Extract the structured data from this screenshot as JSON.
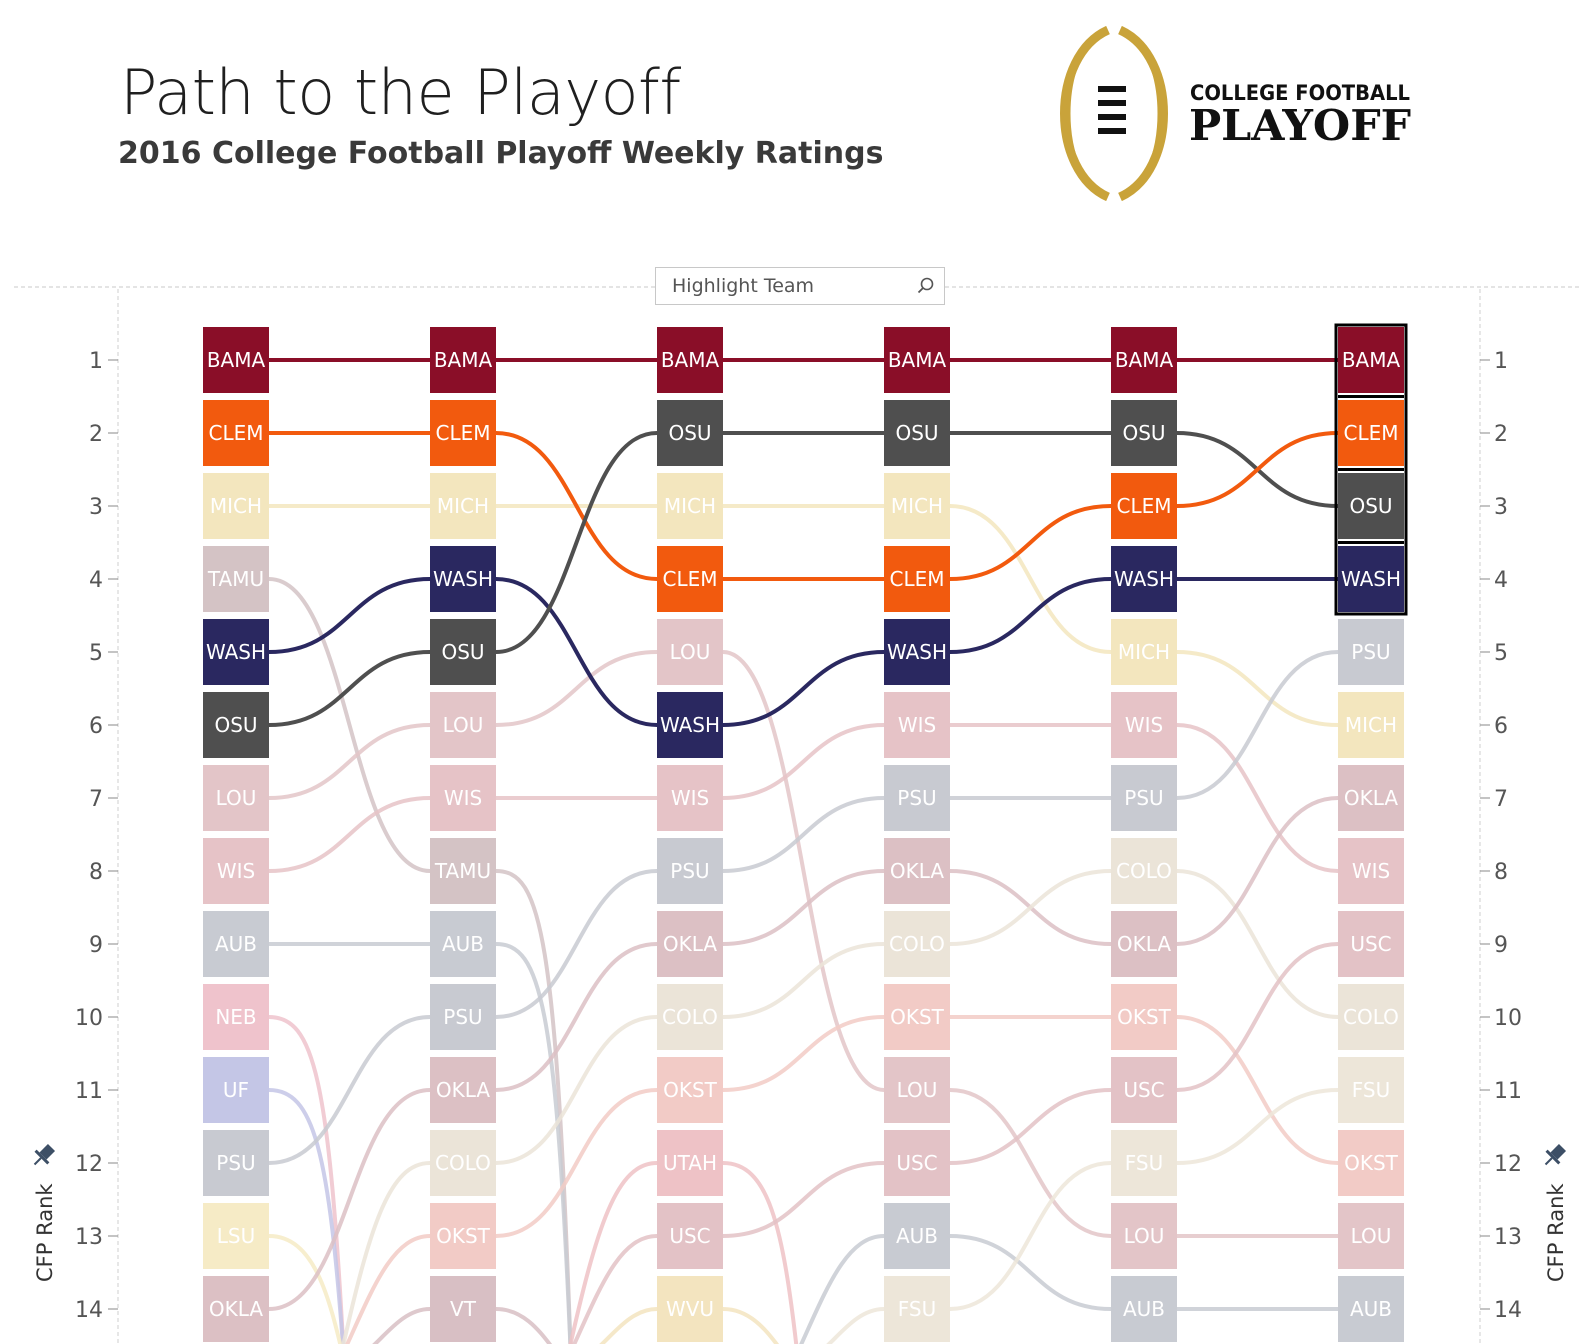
{
  "header": {
    "title": "Path to the Playoff",
    "subtitle": "2016 College Football Playoff Weekly Ratings"
  },
  "logo": {
    "line1": "COLLEGE FOOTBALL",
    "line2": "PLAYOFF"
  },
  "search": {
    "placeholder": "Highlight Team"
  },
  "axis": {
    "left_title": "CFP Rank",
    "right_title": "CFP Rank"
  },
  "colors": {
    "BAMA": "#8a0e28",
    "CLEM": "#f25a0e",
    "OSU": "#4f4f4f",
    "WASH": "#2a2860",
    "MICH": "#f3e6be",
    "TAMU": "#d4c3c5",
    "LOU": "#e3c5c8",
    "WIS": "#e6c3c7",
    "AUB": "#c8cbd2",
    "NEB": "#efc3cc",
    "UF": "#c4c6e6",
    "PSU": "#c8cad1",
    "LSU": "#f6ebc6",
    "OKLA": "#dcc0c4",
    "COLO": "#ebe4d8",
    "OKST": "#f2cbc6",
    "VT": "#d8bfc4",
    "UTAH": "#eec2c6",
    "USC": "#e3c2c6",
    "WVU": "#f3e4bf",
    "FSU": "#ede6d9"
  },
  "chart_data": {
    "type": "bump",
    "ylabel": "CFP Rank",
    "y_ticks": [
      1,
      2,
      3,
      4,
      5,
      6,
      7,
      8,
      9,
      10,
      11,
      12,
      13,
      14
    ],
    "highlighted_teams": [
      "BAMA",
      "CLEM",
      "OSU",
      "WASH"
    ],
    "weeks": [
      {
        "teams": [
          "BAMA",
          "CLEM",
          "MICH",
          "TAMU",
          "WASH",
          "OSU",
          "LOU",
          "WIS",
          "AUB",
          "NEB",
          "UF",
          "PSU",
          "LSU",
          "OKLA"
        ]
      },
      {
        "teams": [
          "BAMA",
          "CLEM",
          "MICH",
          "WASH",
          "OSU",
          "LOU",
          "WIS",
          "TAMU",
          "AUB",
          "PSU",
          "OKLA",
          "COLO",
          "OKST",
          "VT"
        ]
      },
      {
        "teams": [
          "BAMA",
          "OSU",
          "MICH",
          "CLEM",
          "LOU",
          "WASH",
          "WIS",
          "PSU",
          "OKLA",
          "COLO",
          "OKST",
          "UTAH",
          "USC",
          "WVU"
        ]
      },
      {
        "teams": [
          "BAMA",
          "OSU",
          "MICH",
          "CLEM",
          "WASH",
          "WIS",
          "PSU",
          "OKLA",
          "COLO",
          "OKST",
          "LOU",
          "USC",
          "AUB",
          "FSU"
        ]
      },
      {
        "teams": [
          "BAMA",
          "OSU",
          "CLEM",
          "WASH",
          "MICH",
          "WIS",
          "PSU",
          "COLO",
          "OKLA",
          "OKST",
          "USC",
          "FSU",
          "LOU",
          "AUB"
        ]
      },
      {
        "teams": [
          "BAMA",
          "CLEM",
          "OSU",
          "WASH",
          "PSU",
          "MICH",
          "OKLA",
          "WIS",
          "USC",
          "COLO",
          "FSU",
          "OKST",
          "LOU",
          "AUB"
        ]
      }
    ]
  }
}
